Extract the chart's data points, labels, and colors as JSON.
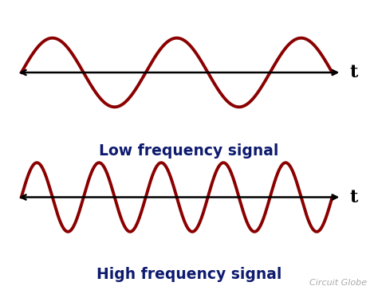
{
  "background_color": "#ffffff",
  "wave_color": "#8B0000",
  "wave_linewidth": 2.8,
  "axis_color": "#000000",
  "axis_linewidth": 1.8,
  "label_color": "#0d1a6e",
  "low_freq_cycles": 2.5,
  "high_freq_cycles": 5.0,
  "low_label": "Low frequency signal",
  "high_label": "High frequency signal",
  "t_label": "t",
  "watermark": "Circuit Globe",
  "label_fontsize": 13.5,
  "t_fontsize": 16,
  "watermark_fontsize": 8,
  "amplitude": 0.72
}
